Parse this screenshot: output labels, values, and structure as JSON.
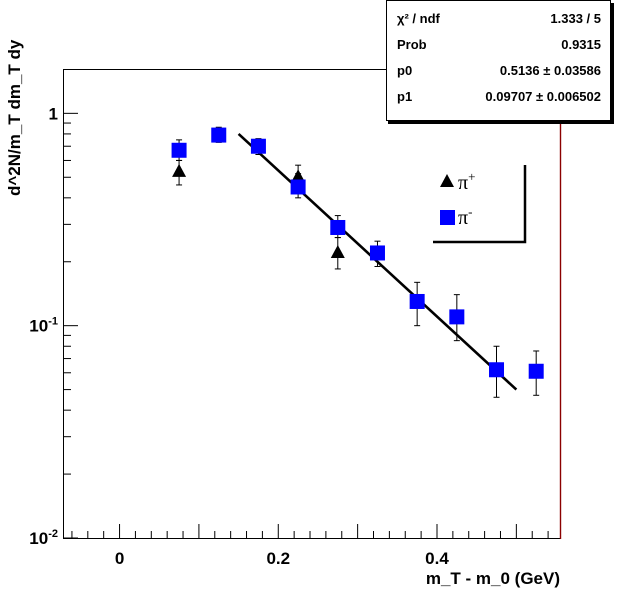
{
  "chart_data": {
    "type": "scatter",
    "xlabel": "m_T - m_0 (GeV)",
    "ylabel": "d^2N/m_T dm_T dy",
    "xlim": [
      -0.07,
      0.555
    ],
    "ylim": [
      0.01,
      1.6
    ],
    "yscale": "log",
    "grid": false,
    "x_ticks": [
      0,
      0.2,
      0.4
    ],
    "x_tick_labels": [
      "0",
      "0.2",
      "0.4"
    ],
    "y_ticks": [
      {
        "mantissa": "10",
        "exp": "-2",
        "value": 0.01
      },
      {
        "mantissa": "10",
        "exp": "-1",
        "value": 0.1
      },
      {
        "mantissa": "1",
        "exp": "",
        "value": 1
      }
    ],
    "series": [
      {
        "name": "π+",
        "marker": "triangle",
        "color": "#000000",
        "points": [
          {
            "x": 0.075,
            "y": 0.53,
            "lo": 0.46,
            "hi": 0.6
          },
          {
            "x": 0.225,
            "y": 0.5,
            "lo": 0.43,
            "hi": 0.57
          },
          {
            "x": 0.275,
            "y": 0.22,
            "lo": 0.185,
            "hi": 0.26
          }
        ]
      },
      {
        "name": "π-",
        "marker": "square",
        "color": "#0000ff",
        "points": [
          {
            "x": 0.075,
            "y": 0.67,
            "lo": 0.6,
            "hi": 0.75
          },
          {
            "x": 0.125,
            "y": 0.79,
            "lo": 0.73,
            "hi": 0.86
          },
          {
            "x": 0.175,
            "y": 0.7,
            "lo": 0.64,
            "hi": 0.76
          },
          {
            "x": 0.225,
            "y": 0.45,
            "lo": 0.4,
            "hi": 0.52
          },
          {
            "x": 0.275,
            "y": 0.29,
            "lo": 0.26,
            "hi": 0.33
          },
          {
            "x": 0.325,
            "y": 0.22,
            "lo": 0.19,
            "hi": 0.25
          },
          {
            "x": 0.375,
            "y": 0.13,
            "lo": 0.1,
            "hi": 0.16
          },
          {
            "x": 0.425,
            "y": 0.11,
            "lo": 0.085,
            "hi": 0.14
          },
          {
            "x": 0.475,
            "y": 0.062,
            "lo": 0.046,
            "hi": 0.08
          },
          {
            "x": 0.525,
            "y": 0.061,
            "lo": 0.047,
            "hi": 0.076
          }
        ]
      }
    ],
    "fit": {
      "x_start": 0.15,
      "x_end": 0.5,
      "y_start": 0.8,
      "y_end": 0.05
    },
    "stats": [
      {
        "label": "χ² / ndf",
        "value": "1.333 / 5"
      },
      {
        "label": "Prob",
        "value": "0.9315"
      },
      {
        "label": "p0",
        "value": "0.5136 ± 0.03586"
      },
      {
        "label": "p1",
        "value": "0.09707 ± 0.006502"
      }
    ],
    "legend": [
      {
        "label": "π",
        "sup": "+",
        "marker": "triangle",
        "color": "#000000"
      },
      {
        "label": "π",
        "sup": "-",
        "marker": "square",
        "color": "#0000ff"
      }
    ],
    "legend_position": "upper-right"
  }
}
